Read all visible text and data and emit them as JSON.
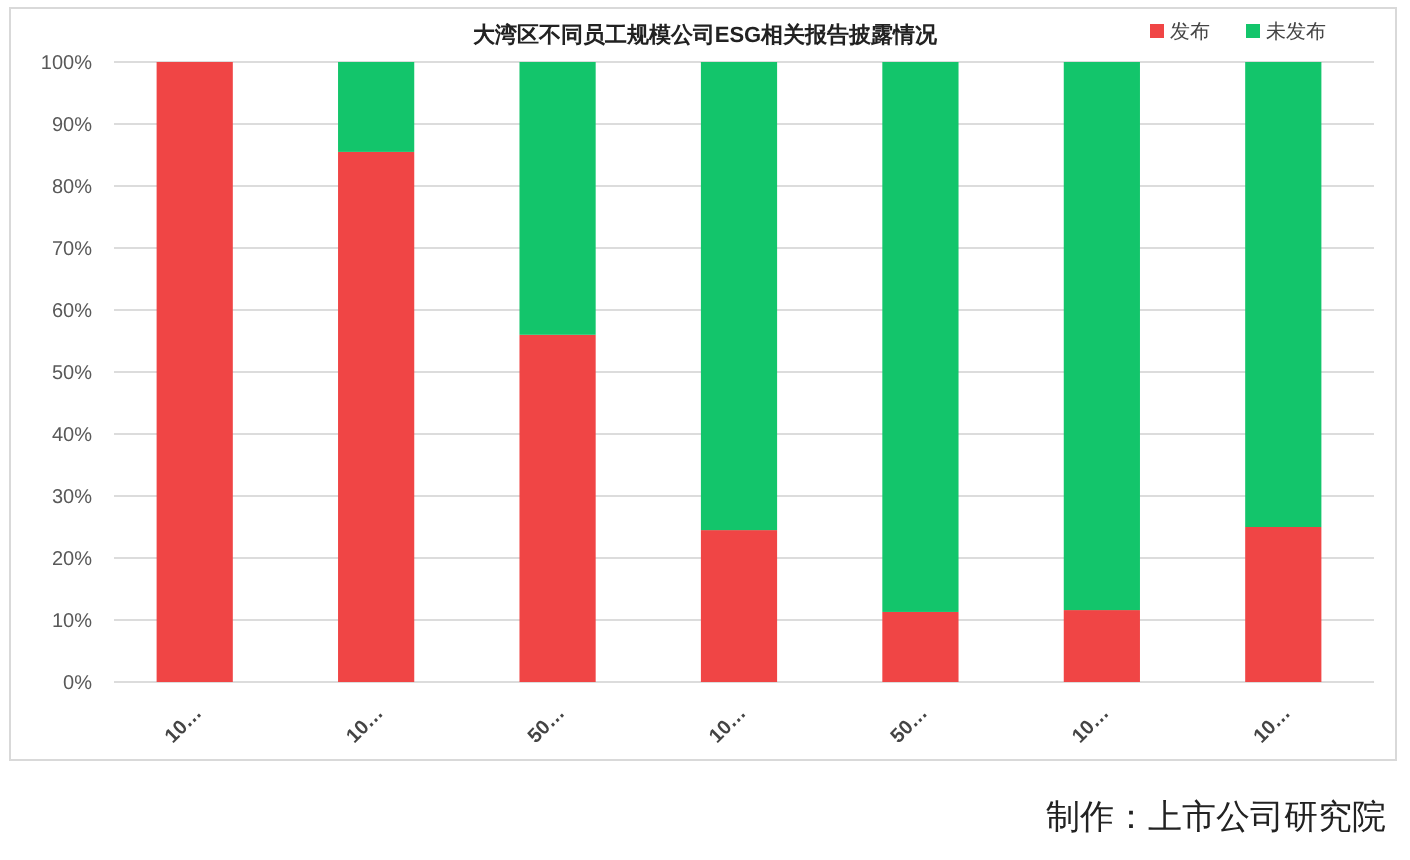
{
  "chart_data": {
    "type": "bar",
    "title": "大湾区不同员工规模公司ESG相关报告披露情况",
    "categories": [
      "10…",
      "10…",
      "50…",
      "10…",
      "50…",
      "10…",
      "10…"
    ],
    "series": [
      {
        "name": "发布",
        "color": "#f04545",
        "values": [
          100,
          85.5,
          56,
          24.5,
          11.3,
          11.6,
          25
        ]
      },
      {
        "name": "未发布",
        "color": "#13c56b",
        "values": [
          0,
          14.5,
          44,
          75.5,
          88.7,
          88.4,
          75
        ]
      }
    ],
    "stacked": true,
    "ylim": [
      0,
      100
    ],
    "yticks": [
      {
        "value": 0,
        "label": "0%"
      },
      {
        "value": 10,
        "label": "10%"
      },
      {
        "value": 20,
        "label": "20%"
      },
      {
        "value": 30,
        "label": "30%"
      },
      {
        "value": 40,
        "label": "40%"
      },
      {
        "value": 50,
        "label": "50%"
      },
      {
        "value": 60,
        "label": "60%"
      },
      {
        "value": 70,
        "label": "70%"
      },
      {
        "value": 80,
        "label": "80%"
      },
      {
        "value": 90,
        "label": "90%"
      },
      {
        "value": 100,
        "label": "100%"
      }
    ],
    "grid": "y",
    "legend": "top right",
    "annotations": [
      "制作：上市公司研究院"
    ]
  }
}
